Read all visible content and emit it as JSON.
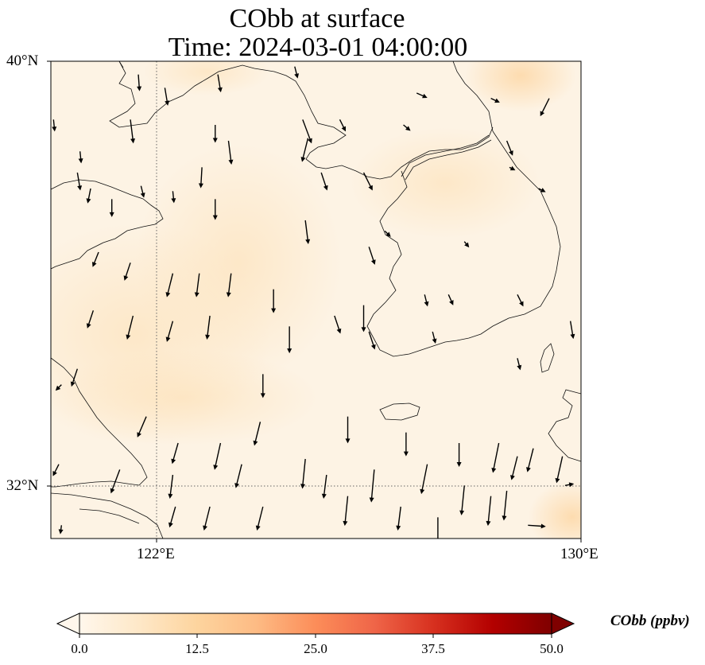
{
  "title": {
    "line1": "CObb at surface",
    "line2": "Time: 2024-03-01 04:00:00"
  },
  "map": {
    "projection": "lat-lon",
    "lon_range": [
      120.0,
      130.0
    ],
    "lat_range": [
      31.0,
      40.0
    ],
    "gridlines": {
      "lon": [
        122
      ],
      "lat": [
        32
      ],
      "style": "dotted"
    },
    "lat_labels": [
      {
        "lat": 40,
        "text": "40°N"
      },
      {
        "lat": 32,
        "text": "32°N"
      }
    ],
    "lon_labels": [
      {
        "lon": 122,
        "text": "122°E"
      },
      {
        "lon": 130,
        "text": "130°E"
      }
    ],
    "field_range_ppbv": [
      0,
      8
    ],
    "regions": [
      "Yellow Sea",
      "Korean Peninsula",
      "Liaodong Peninsula",
      "Shandong Peninsula",
      "Jeju Island",
      "East China coast"
    ]
  },
  "colorbar": {
    "label": "CObb (ppbv)",
    "ticks": [
      "0.0",
      "12.5",
      "25.0",
      "37.5",
      "50.0"
    ],
    "vmin": 0.0,
    "vmax": 50.0,
    "colormap": "OrRd",
    "colors": [
      "#fff7ec",
      "#fee8c8",
      "#fdd49e",
      "#fdbb84",
      "#fc8d59",
      "#ef6548",
      "#d7301f",
      "#b30000",
      "#7f0000"
    ],
    "extend": "both"
  },
  "wind_vectors": [
    {
      "lon": 121.65,
      "lat": 39.75,
      "u": 0.02,
      "v": -0.28
    },
    {
      "lon": 122.15,
      "lat": 39.5,
      "u": 0.05,
      "v": -0.3
    },
    {
      "lon": 123.15,
      "lat": 39.75,
      "u": 0.05,
      "v": -0.3
    },
    {
      "lon": 124.6,
      "lat": 39.9,
      "u": 0.05,
      "v": -0.2
    },
    {
      "lon": 126.9,
      "lat": 39.4,
      "u": 0.18,
      "v": -0.08
    },
    {
      "lon": 128.3,
      "lat": 39.3,
      "u": 0.15,
      "v": -0.07
    },
    {
      "lon": 129.4,
      "lat": 39.3,
      "u": -0.15,
      "v": -0.3
    },
    {
      "lon": 120.05,
      "lat": 38.9,
      "u": 0.02,
      "v": -0.2
    },
    {
      "lon": 120.55,
      "lat": 38.3,
      "u": 0.02,
      "v": -0.2
    },
    {
      "lon": 121.5,
      "lat": 38.9,
      "u": 0.05,
      "v": -0.4
    },
    {
      "lon": 123.1,
      "lat": 38.8,
      "u": 0.0,
      "v": -0.3
    },
    {
      "lon": 123.35,
      "lat": 38.5,
      "u": 0.05,
      "v": -0.4
    },
    {
      "lon": 124.75,
      "lat": 38.9,
      "u": 0.15,
      "v": -0.4
    },
    {
      "lon": 124.85,
      "lat": 38.55,
      "u": -0.1,
      "v": -0.4
    },
    {
      "lon": 125.45,
      "lat": 38.9,
      "u": 0.1,
      "v": -0.2
    },
    {
      "lon": 126.65,
      "lat": 38.8,
      "u": 0.12,
      "v": -0.1
    },
    {
      "lon": 128.6,
      "lat": 38.5,
      "u": 0.1,
      "v": -0.25
    },
    {
      "lon": 120.5,
      "lat": 37.9,
      "u": 0.05,
      "v": -0.3
    },
    {
      "lon": 120.75,
      "lat": 37.6,
      "u": -0.05,
      "v": -0.25
    },
    {
      "lon": 121.7,
      "lat": 37.65,
      "u": 0.05,
      "v": -0.2
    },
    {
      "lon": 122.85,
      "lat": 38.0,
      "u": -0.02,
      "v": -0.35
    },
    {
      "lon": 125.1,
      "lat": 37.9,
      "u": 0.1,
      "v": -0.3
    },
    {
      "lon": 125.9,
      "lat": 37.9,
      "u": 0.15,
      "v": -0.3
    },
    {
      "lon": 128.65,
      "lat": 38.0,
      "u": 0.1,
      "v": -0.05
    },
    {
      "lon": 129.2,
      "lat": 37.6,
      "u": 0.12,
      "v": -0.06
    },
    {
      "lon": 121.15,
      "lat": 37.4,
      "u": 0.0,
      "v": -0.3
    },
    {
      "lon": 122.3,
      "lat": 37.55,
      "u": 0.02,
      "v": -0.2
    },
    {
      "lon": 123.1,
      "lat": 37.4,
      "u": 0.0,
      "v": -0.35
    },
    {
      "lon": 124.8,
      "lat": 37.0,
      "u": 0.05,
      "v": -0.4
    },
    {
      "lon": 126.3,
      "lat": 36.8,
      "u": 0.1,
      "v": -0.1
    },
    {
      "lon": 126.0,
      "lat": 36.5,
      "u": 0.1,
      "v": -0.3
    },
    {
      "lon": 127.8,
      "lat": 36.6,
      "u": 0.08,
      "v": -0.1
    },
    {
      "lon": 120.9,
      "lat": 36.4,
      "u": -0.1,
      "v": -0.25
    },
    {
      "lon": 121.5,
      "lat": 36.2,
      "u": -0.1,
      "v": -0.3
    },
    {
      "lon": 122.3,
      "lat": 36.0,
      "u": -0.1,
      "v": -0.4
    },
    {
      "lon": 122.8,
      "lat": 36.0,
      "u": -0.05,
      "v": -0.4
    },
    {
      "lon": 123.4,
      "lat": 36.0,
      "u": -0.05,
      "v": -0.4
    },
    {
      "lon": 124.2,
      "lat": 35.7,
      "u": 0.0,
      "v": -0.4
    },
    {
      "lon": 125.9,
      "lat": 35.4,
      "u": 0.0,
      "v": -0.45
    },
    {
      "lon": 127.05,
      "lat": 35.6,
      "u": 0.05,
      "v": -0.2
    },
    {
      "lon": 127.5,
      "lat": 35.6,
      "u": 0.08,
      "v": -0.18
    },
    {
      "lon": 128.8,
      "lat": 35.6,
      "u": 0.1,
      "v": -0.2
    },
    {
      "lon": 129.8,
      "lat": 35.1,
      "u": 0.05,
      "v": -0.3
    },
    {
      "lon": 120.8,
      "lat": 35.3,
      "u": -0.1,
      "v": -0.3
    },
    {
      "lon": 121.55,
      "lat": 35.2,
      "u": -0.1,
      "v": -0.4
    },
    {
      "lon": 122.3,
      "lat": 35.1,
      "u": -0.1,
      "v": -0.35
    },
    {
      "lon": 123.0,
      "lat": 35.2,
      "u": -0.05,
      "v": -0.4
    },
    {
      "lon": 124.5,
      "lat": 35.0,
      "u": 0.0,
      "v": -0.45
    },
    {
      "lon": 125.35,
      "lat": 35.2,
      "u": 0.1,
      "v": -0.3
    },
    {
      "lon": 126.0,
      "lat": 34.9,
      "u": 0.1,
      "v": -0.3
    },
    {
      "lon": 127.2,
      "lat": 34.9,
      "u": 0.05,
      "v": -0.2
    },
    {
      "lon": 128.8,
      "lat": 34.4,
      "u": 0.05,
      "v": -0.2
    },
    {
      "lon": 120.5,
      "lat": 34.2,
      "u": -0.1,
      "v": -0.3
    },
    {
      "lon": 120.2,
      "lat": 33.9,
      "u": -0.1,
      "v": -0.1
    },
    {
      "lon": 121.8,
      "lat": 33.3,
      "u": -0.15,
      "v": -0.35
    },
    {
      "lon": 122.4,
      "lat": 32.8,
      "u": -0.1,
      "v": -0.35
    },
    {
      "lon": 123.2,
      "lat": 32.8,
      "u": -0.1,
      "v": -0.45
    },
    {
      "lon": 123.95,
      "lat": 33.2,
      "u": -0.1,
      "v": -0.4
    },
    {
      "lon": 124.0,
      "lat": 34.1,
      "u": 0.0,
      "v": -0.4
    },
    {
      "lon": 125.6,
      "lat": 33.3,
      "u": 0.0,
      "v": -0.45
    },
    {
      "lon": 126.7,
      "lat": 33.0,
      "u": 0.0,
      "v": -0.4
    },
    {
      "lon": 127.7,
      "lat": 32.8,
      "u": 0.0,
      "v": -0.4
    },
    {
      "lon": 128.45,
      "lat": 32.8,
      "u": -0.1,
      "v": -0.5
    },
    {
      "lon": 128.8,
      "lat": 32.55,
      "u": -0.1,
      "v": -0.4
    },
    {
      "lon": 129.1,
      "lat": 32.7,
      "u": -0.1,
      "v": -0.4
    },
    {
      "lon": 129.65,
      "lat": 32.55,
      "u": -0.1,
      "v": -0.45
    },
    {
      "lon": 120.15,
      "lat": 32.4,
      "u": -0.1,
      "v": -0.2
    },
    {
      "lon": 121.3,
      "lat": 32.3,
      "u": -0.15,
      "v": -0.4
    },
    {
      "lon": 122.3,
      "lat": 32.2,
      "u": -0.05,
      "v": -0.4
    },
    {
      "lon": 123.6,
      "lat": 32.4,
      "u": -0.1,
      "v": -0.4
    },
    {
      "lon": 124.8,
      "lat": 32.5,
      "u": -0.05,
      "v": -0.5
    },
    {
      "lon": 125.2,
      "lat": 32.2,
      "u": -0.05,
      "v": -0.4
    },
    {
      "lon": 126.1,
      "lat": 32.3,
      "u": -0.05,
      "v": -0.55
    },
    {
      "lon": 127.1,
      "lat": 32.4,
      "u": -0.1,
      "v": -0.5
    },
    {
      "lon": 127.8,
      "lat": 32.0,
      "u": -0.05,
      "v": -0.5
    },
    {
      "lon": 128.3,
      "lat": 31.8,
      "u": -0.05,
      "v": -0.5
    },
    {
      "lon": 128.6,
      "lat": 31.9,
      "u": -0.05,
      "v": -0.5
    },
    {
      "lon": 122.35,
      "lat": 31.6,
      "u": -0.1,
      "v": -0.35
    },
    {
      "lon": 123.0,
      "lat": 31.6,
      "u": -0.1,
      "v": -0.4
    },
    {
      "lon": 124.0,
      "lat": 31.6,
      "u": -0.1,
      "v": -0.4
    },
    {
      "lon": 125.6,
      "lat": 31.8,
      "u": -0.05,
      "v": -0.5
    },
    {
      "lon": 126.6,
      "lat": 31.6,
      "u": -0.05,
      "v": -0.4
    },
    {
      "lon": 127.3,
      "lat": 31.4,
      "u": 0.0,
      "v": -0.45
    },
    {
      "lon": 129.0,
      "lat": 31.25,
      "u": 0.3,
      "v": -0.02
    },
    {
      "lon": 129.7,
      "lat": 32.0,
      "u": 0.15,
      "v": 0.03
    },
    {
      "lon": 120.2,
      "lat": 31.25,
      "u": -0.02,
      "v": -0.15
    },
    {
      "lon": 121.2,
      "lat": 31.0,
      "u": -0.1,
      "v": -0.35
    }
  ]
}
